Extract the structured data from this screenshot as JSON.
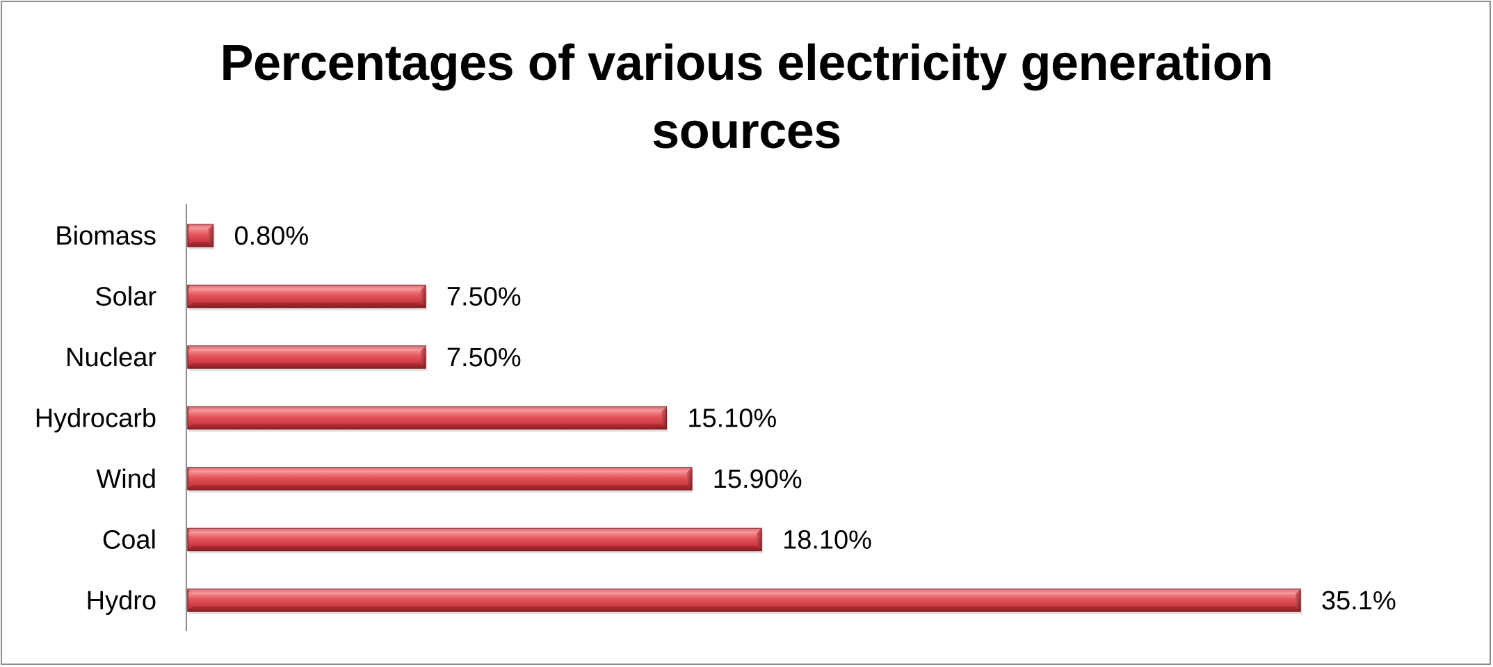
{
  "chart_data": {
    "type": "bar",
    "orientation": "horizontal",
    "title": "Percentages of various electricity generation sources",
    "title_lines": [
      "Percentages of various electricity generation",
      "sources"
    ],
    "xlabel": "",
    "ylabel": "",
    "xlim": [
      0,
      40
    ],
    "categories": [
      "Biomass",
      "Solar",
      "Nuclear",
      "Hydrocarb",
      "Wind",
      "Coal",
      "Hydro"
    ],
    "values": [
      0.8,
      7.5,
      7.5,
      15.1,
      15.9,
      18.1,
      35.1
    ],
    "data_labels": [
      "0.80%",
      "7.50%",
      "7.50%",
      "15.10%",
      "15.90%",
      "18.10%",
      "35.1%"
    ],
    "bar_color": "#d9434a",
    "bar_highlight": "#f28a8e",
    "bar_shadow": "#8e1f25",
    "grid": false,
    "legend": "none"
  }
}
